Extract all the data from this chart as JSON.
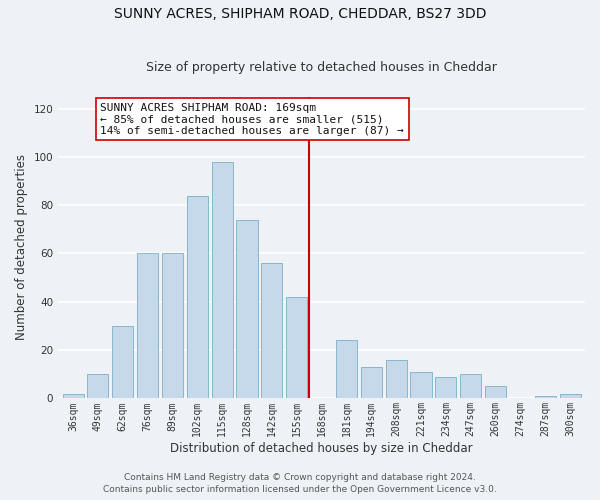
{
  "title": "SUNNY ACRES, SHIPHAM ROAD, CHEDDAR, BS27 3DD",
  "subtitle": "Size of property relative to detached houses in Cheddar",
  "xlabel": "Distribution of detached houses by size in Cheddar",
  "ylabel": "Number of detached properties",
  "bar_labels": [
    "36sqm",
    "49sqm",
    "62sqm",
    "76sqm",
    "89sqm",
    "102sqm",
    "115sqm",
    "128sqm",
    "142sqm",
    "155sqm",
    "168sqm",
    "181sqm",
    "194sqm",
    "208sqm",
    "221sqm",
    "234sqm",
    "247sqm",
    "260sqm",
    "274sqm",
    "287sqm",
    "300sqm"
  ],
  "bar_values": [
    2,
    10,
    30,
    60,
    60,
    84,
    98,
    74,
    56,
    42,
    0,
    24,
    13,
    16,
    11,
    9,
    10,
    5,
    0,
    1,
    2
  ],
  "bar_color": "#c5d9ea",
  "bar_edge_color": "#7aafc8",
  "reference_line_x": 10,
  "reference_line_color": "#cc0000",
  "annotation_line1": "SUNNY ACRES SHIPHAM ROAD: 169sqm",
  "annotation_line2": "← 85% of detached houses are smaller (515)",
  "annotation_line3": "14% of semi-detached houses are larger (87) →",
  "annotation_box_edge_color": "#cc0000",
  "ylim": [
    0,
    125
  ],
  "yticks": [
    0,
    20,
    40,
    60,
    80,
    100,
    120
  ],
  "footer_line1": "Contains HM Land Registry data © Crown copyright and database right 2024.",
  "footer_line2": "Contains public sector information licensed under the Open Government Licence v3.0.",
  "background_color": "#eef2f7",
  "grid_color": "#ffffff",
  "title_fontsize": 10,
  "subtitle_fontsize": 9,
  "axis_label_fontsize": 8.5,
  "tick_fontsize": 7,
  "annotation_fontsize": 8,
  "footer_fontsize": 6.5
}
